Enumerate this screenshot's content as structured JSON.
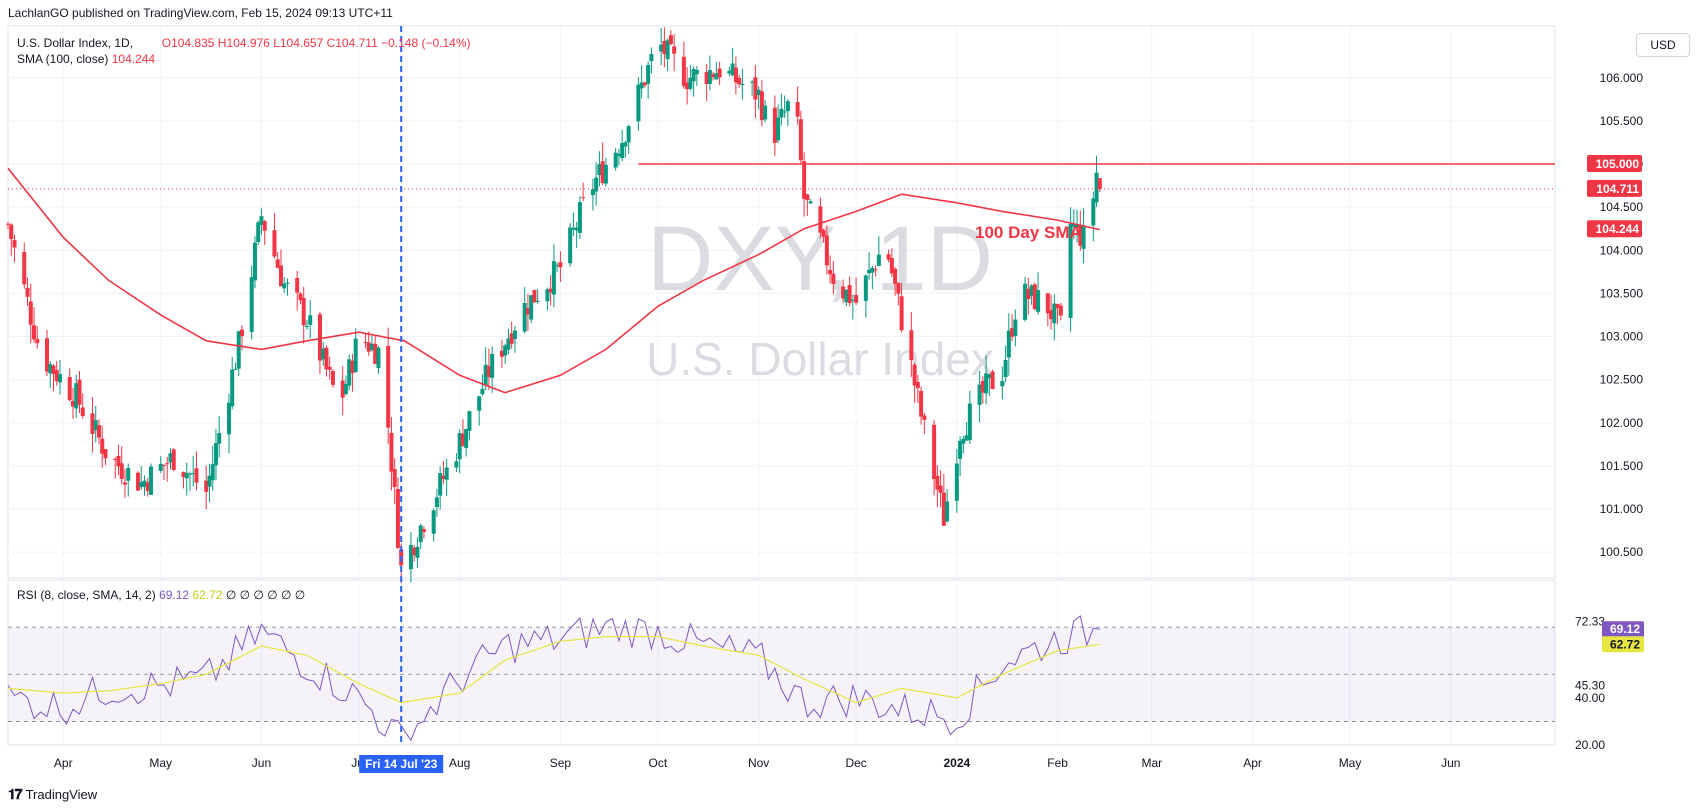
{
  "header": {
    "published": "LachlanGO published on TradingView.com, Feb 15, 2024 09:13 UTC+11"
  },
  "legend": {
    "symbol": "U.S. Dollar Index, 1D,",
    "open": "O104.835",
    "high": "H104.976",
    "low": "L104.657",
    "close": "C104.711",
    "change": "−0.148 (−0.14%)",
    "sma_label": "SMA (100, close)",
    "sma_value": "104.244"
  },
  "currency_button": "USD",
  "watermark": {
    "ticker": "DXY, 1D",
    "name": "U.S. Dollar Index"
  },
  "annotation": {
    "sma_text": "100 Day SMA"
  },
  "rsi_legend": {
    "label": "RSI (8, close, SMA, 14, 2)",
    "rsi_value": "69.12",
    "ma_value": "62.72",
    "extras": "∅ ∅ ∅ ∅ ∅ ∅"
  },
  "crosshair_date": "Fri 14 Jul '23",
  "footer": {
    "brand": "TradingView"
  },
  "colors": {
    "up": "#089981",
    "down": "#f23645",
    "sma": "#f23645",
    "rsi_line": "#7e57c2",
    "rsi_ma": "#e6e641",
    "crosshair": "#2962ff"
  },
  "chart_data": [
    {
      "type": "candlestick",
      "title": "U.S. Dollar Index, 1D",
      "y_ticks": [
        "106.000",
        "105.500",
        "105.000",
        "104.500",
        "104.000",
        "103.500",
        "103.000",
        "102.500",
        "102.000",
        "101.500",
        "101.000",
        "100.500"
      ],
      "ylim": [
        100.2,
        106.6
      ],
      "x_ticks": [
        "Apr",
        "May",
        "Jun",
        "Jul",
        "Aug",
        "Sep",
        "Oct",
        "Nov",
        "Dec",
        "2024",
        "Feb",
        "Mar",
        "Apr",
        "May",
        "Jun"
      ],
      "price_labels": {
        "resistance": "105.000",
        "last": "104.711",
        "sma": "104.244"
      },
      "resistance_level": 105.0,
      "last_price": 104.711,
      "sma_trail": [
        [
          "2023-03-15",
          104.95
        ],
        [
          "2023-04-01",
          104.15
        ],
        [
          "2023-04-15",
          103.65
        ],
        [
          "2023-05-01",
          103.25
        ],
        [
          "2023-05-15",
          102.95
        ],
        [
          "2023-06-01",
          102.85
        ],
        [
          "2023-06-15",
          102.95
        ],
        [
          "2023-07-01",
          103.05
        ],
        [
          "2023-07-15",
          102.95
        ],
        [
          "2023-08-01",
          102.55
        ],
        [
          "2023-08-15",
          102.35
        ],
        [
          "2023-09-01",
          102.55
        ],
        [
          "2023-09-15",
          102.85
        ],
        [
          "2023-10-01",
          103.35
        ],
        [
          "2023-10-15",
          103.65
        ],
        [
          "2023-11-01",
          103.95
        ],
        [
          "2023-11-15",
          104.25
        ],
        [
          "2023-12-01",
          104.45
        ],
        [
          "2023-12-15",
          104.65
        ],
        [
          "2024-01-01",
          104.55
        ],
        [
          "2024-01-15",
          104.45
        ],
        [
          "2024-02-01",
          104.35
        ],
        [
          "2024-02-14",
          104.24
        ]
      ],
      "price_path": [
        [
          "2023-03-15",
          104.3
        ],
        [
          "2023-03-25",
          102.8
        ],
        [
          "2023-04-05",
          102.3
        ],
        [
          "2023-04-15",
          101.6
        ],
        [
          "2023-04-25",
          101.3
        ],
        [
          "2023-05-05",
          101.6
        ],
        [
          "2023-05-15",
          101.2
        ],
        [
          "2023-05-25",
          102.9
        ],
        [
          "2023-06-01",
          104.4
        ],
        [
          "2023-06-08",
          103.6
        ],
        [
          "2023-06-15",
          103.2
        ],
        [
          "2023-06-25",
          102.2
        ],
        [
          "2023-07-01",
          103.0
        ],
        [
          "2023-07-08",
          102.8
        ],
        [
          "2023-07-14",
          100.3
        ],
        [
          "2023-07-20",
          100.8
        ],
        [
          "2023-07-30",
          101.6
        ],
        [
          "2023-08-10",
          102.6
        ],
        [
          "2023-08-20",
          103.3
        ],
        [
          "2023-09-01",
          103.8
        ],
        [
          "2023-09-10",
          104.7
        ],
        [
          "2023-09-20",
          105.3
        ],
        [
          "2023-10-01",
          106.4
        ],
        [
          "2023-10-10",
          106.0
        ],
        [
          "2023-10-20",
          106.1
        ],
        [
          "2023-11-01",
          105.8
        ],
        [
          "2023-11-05",
          105.3
        ],
        [
          "2023-11-12",
          105.8
        ],
        [
          "2023-11-15",
          104.6
        ],
        [
          "2023-11-25",
          103.6
        ],
        [
          "2023-12-01",
          103.4
        ],
        [
          "2023-12-10",
          104.1
        ],
        [
          "2023-12-15",
          103.2
        ],
        [
          "2023-12-22",
          101.9
        ],
        [
          "2023-12-28",
          100.9
        ],
        [
          "2024-01-02",
          101.9
        ],
        [
          "2024-01-10",
          102.4
        ],
        [
          "2024-01-15",
          102.6
        ],
        [
          "2024-01-20",
          103.5
        ],
        [
          "2024-01-28",
          103.4
        ],
        [
          "2024-02-02",
          103.1
        ],
        [
          "2024-02-05",
          104.3
        ],
        [
          "2024-02-10",
          104.1
        ],
        [
          "2024-02-13",
          104.9
        ],
        [
          "2024-02-14",
          104.71
        ]
      ]
    },
    {
      "type": "line",
      "title": "RSI (8, close, SMA, 14, 2)",
      "y_ticks": [
        "72.33",
        "45.30",
        "40.00",
        "20.00"
      ],
      "ylim": [
        20,
        90
      ],
      "bands": {
        "upper": 70,
        "middle": 50,
        "lower": 30
      },
      "labels": {
        "rsi": "69.12",
        "ma": "62.72"
      },
      "rsi_trail": [
        [
          "2023-03-15",
          40
        ],
        [
          "2023-04-01",
          36
        ],
        [
          "2023-04-15",
          44
        ],
        [
          "2023-05-01",
          45
        ],
        [
          "2023-05-15",
          48
        ],
        [
          "2023-06-01",
          68
        ],
        [
          "2023-06-15",
          54
        ],
        [
          "2023-07-01",
          40
        ],
        [
          "2023-07-14",
          22
        ],
        [
          "2023-08-01",
          48
        ],
        [
          "2023-08-15",
          62
        ],
        [
          "2023-09-01",
          65
        ],
        [
          "2023-09-15",
          70
        ],
        [
          "2023-10-01",
          68
        ],
        [
          "2023-10-15",
          62
        ],
        [
          "2023-11-01",
          57
        ],
        [
          "2023-11-15",
          38
        ],
        [
          "2023-12-01",
          40
        ],
        [
          "2023-12-15",
          35
        ],
        [
          "2024-01-01",
          32
        ],
        [
          "2024-01-15",
          55
        ],
        [
          "2024-02-01",
          65
        ],
        [
          "2024-02-14",
          69.12
        ]
      ],
      "ma_trail": [
        [
          "2023-03-15",
          44
        ],
        [
          "2023-04-01",
          42
        ],
        [
          "2023-04-15",
          43
        ],
        [
          "2023-05-01",
          46
        ],
        [
          "2023-05-15",
          50
        ],
        [
          "2023-06-01",
          62
        ],
        [
          "2023-06-15",
          58
        ],
        [
          "2023-07-01",
          46
        ],
        [
          "2023-07-14",
          38
        ],
        [
          "2023-08-01",
          42
        ],
        [
          "2023-08-15",
          56
        ],
        [
          "2023-09-01",
          64
        ],
        [
          "2023-09-15",
          66
        ],
        [
          "2023-10-01",
          66
        ],
        [
          "2023-10-15",
          62
        ],
        [
          "2023-11-01",
          58
        ],
        [
          "2023-11-15",
          48
        ],
        [
          "2023-12-01",
          38
        ],
        [
          "2023-12-15",
          44
        ],
        [
          "2024-01-01",
          40
        ],
        [
          "2024-01-15",
          50
        ],
        [
          "2024-02-01",
          60
        ],
        [
          "2024-02-14",
          62.72
        ]
      ]
    }
  ]
}
